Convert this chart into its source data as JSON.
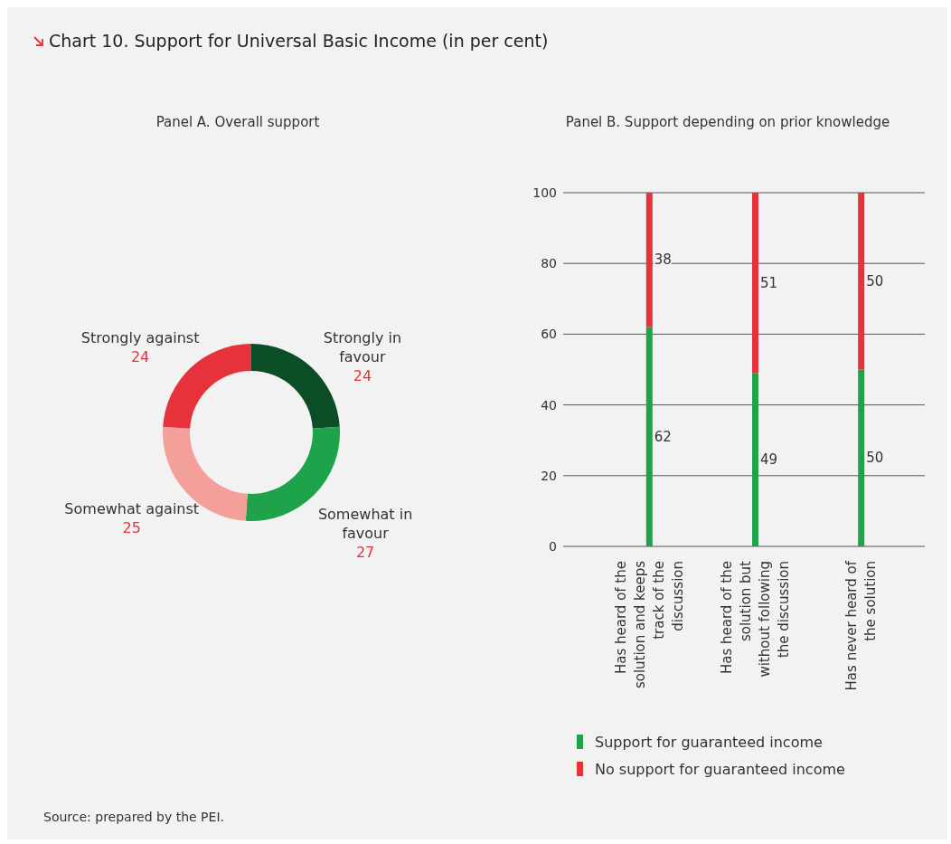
{
  "chart_data": [
    {
      "type": "donut",
      "title": "Chart 10. Support for Universal Basic Income (in per cent)",
      "subtitle": "Panel A. Overall support",
      "categories": [
        "Strongly in favour",
        "Somewhat in favour",
        "Somewhat against",
        "Strongly against"
      ],
      "values": [
        24,
        27,
        25,
        24
      ],
      "colors": [
        "#0b4d25",
        "#1fa34a",
        "#f4a09a",
        "#e5323b"
      ],
      "data_labels": true
    },
    {
      "type": "bar",
      "title": "Panel B. Support depending on prior knowledge",
      "categories": [
        "Has heard of the solution and keeps track of the discussion",
        "Has heard of the solution but without following the discussion",
        "Has never heard of the solution"
      ],
      "stacked": true,
      "series": [
        {
          "name": "Support for guaranteed income",
          "color": "#1fa34a",
          "values": [
            62,
            49,
            50
          ]
        },
        {
          "name": "No support for guaranteed income",
          "color": "#e5323b",
          "values": [
            38,
            51,
            50
          ]
        }
      ],
      "ylim": [
        0,
        100
      ],
      "yticks": [
        0,
        20,
        40,
        60,
        80,
        100
      ],
      "grid": "y",
      "legend": "bottom",
      "data_labels": true,
      "annotations": [
        "Source: prepared by the PEI."
      ]
    }
  ]
}
